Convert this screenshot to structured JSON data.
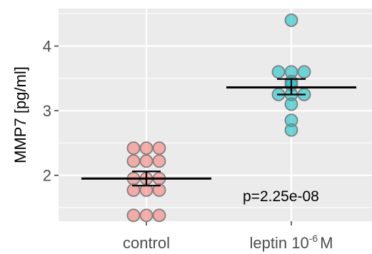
{
  "chart_data": {
    "type": "scatter",
    "title": "",
    "xlabel": "",
    "ylabel": "MMP7 [pg/ml]",
    "ylim": [
      1.29,
      4.58
    ],
    "yticks": [
      2,
      3,
      4
    ],
    "grid": true,
    "legend": "none",
    "categories": [
      {
        "label": "control"
      },
      {
        "label": "leptin 10",
        "superscript": "-6",
        "suffix": "M"
      }
    ],
    "series": [
      {
        "category_index": 0,
        "color": "#F8766D",
        "values": [
          2.42,
          2.42,
          2.42,
          2.22,
          2.22,
          2.22,
          1.95,
          1.95,
          1.95,
          1.77,
          1.77,
          1.77,
          1.38,
          1.38,
          1.38
        ],
        "mean": 1.95,
        "error_low": 1.84,
        "error_high": 2.06
      },
      {
        "category_index": 1,
        "color": "#00BFC4",
        "values": [
          4.4,
          3.6,
          3.6,
          3.6,
          3.45,
          3.4,
          3.25,
          3.25,
          3.25,
          3.1,
          2.85,
          2.7
        ],
        "mean": 3.36,
        "error_low": 3.25,
        "error_high": 3.49
      }
    ],
    "annotation": "p=2.25e-08"
  },
  "colors": {
    "panel_background": "#EBEBEB",
    "grid": "#FFFFFF",
    "point_stroke": "#7F7F7F",
    "mean_line": "#000000"
  }
}
